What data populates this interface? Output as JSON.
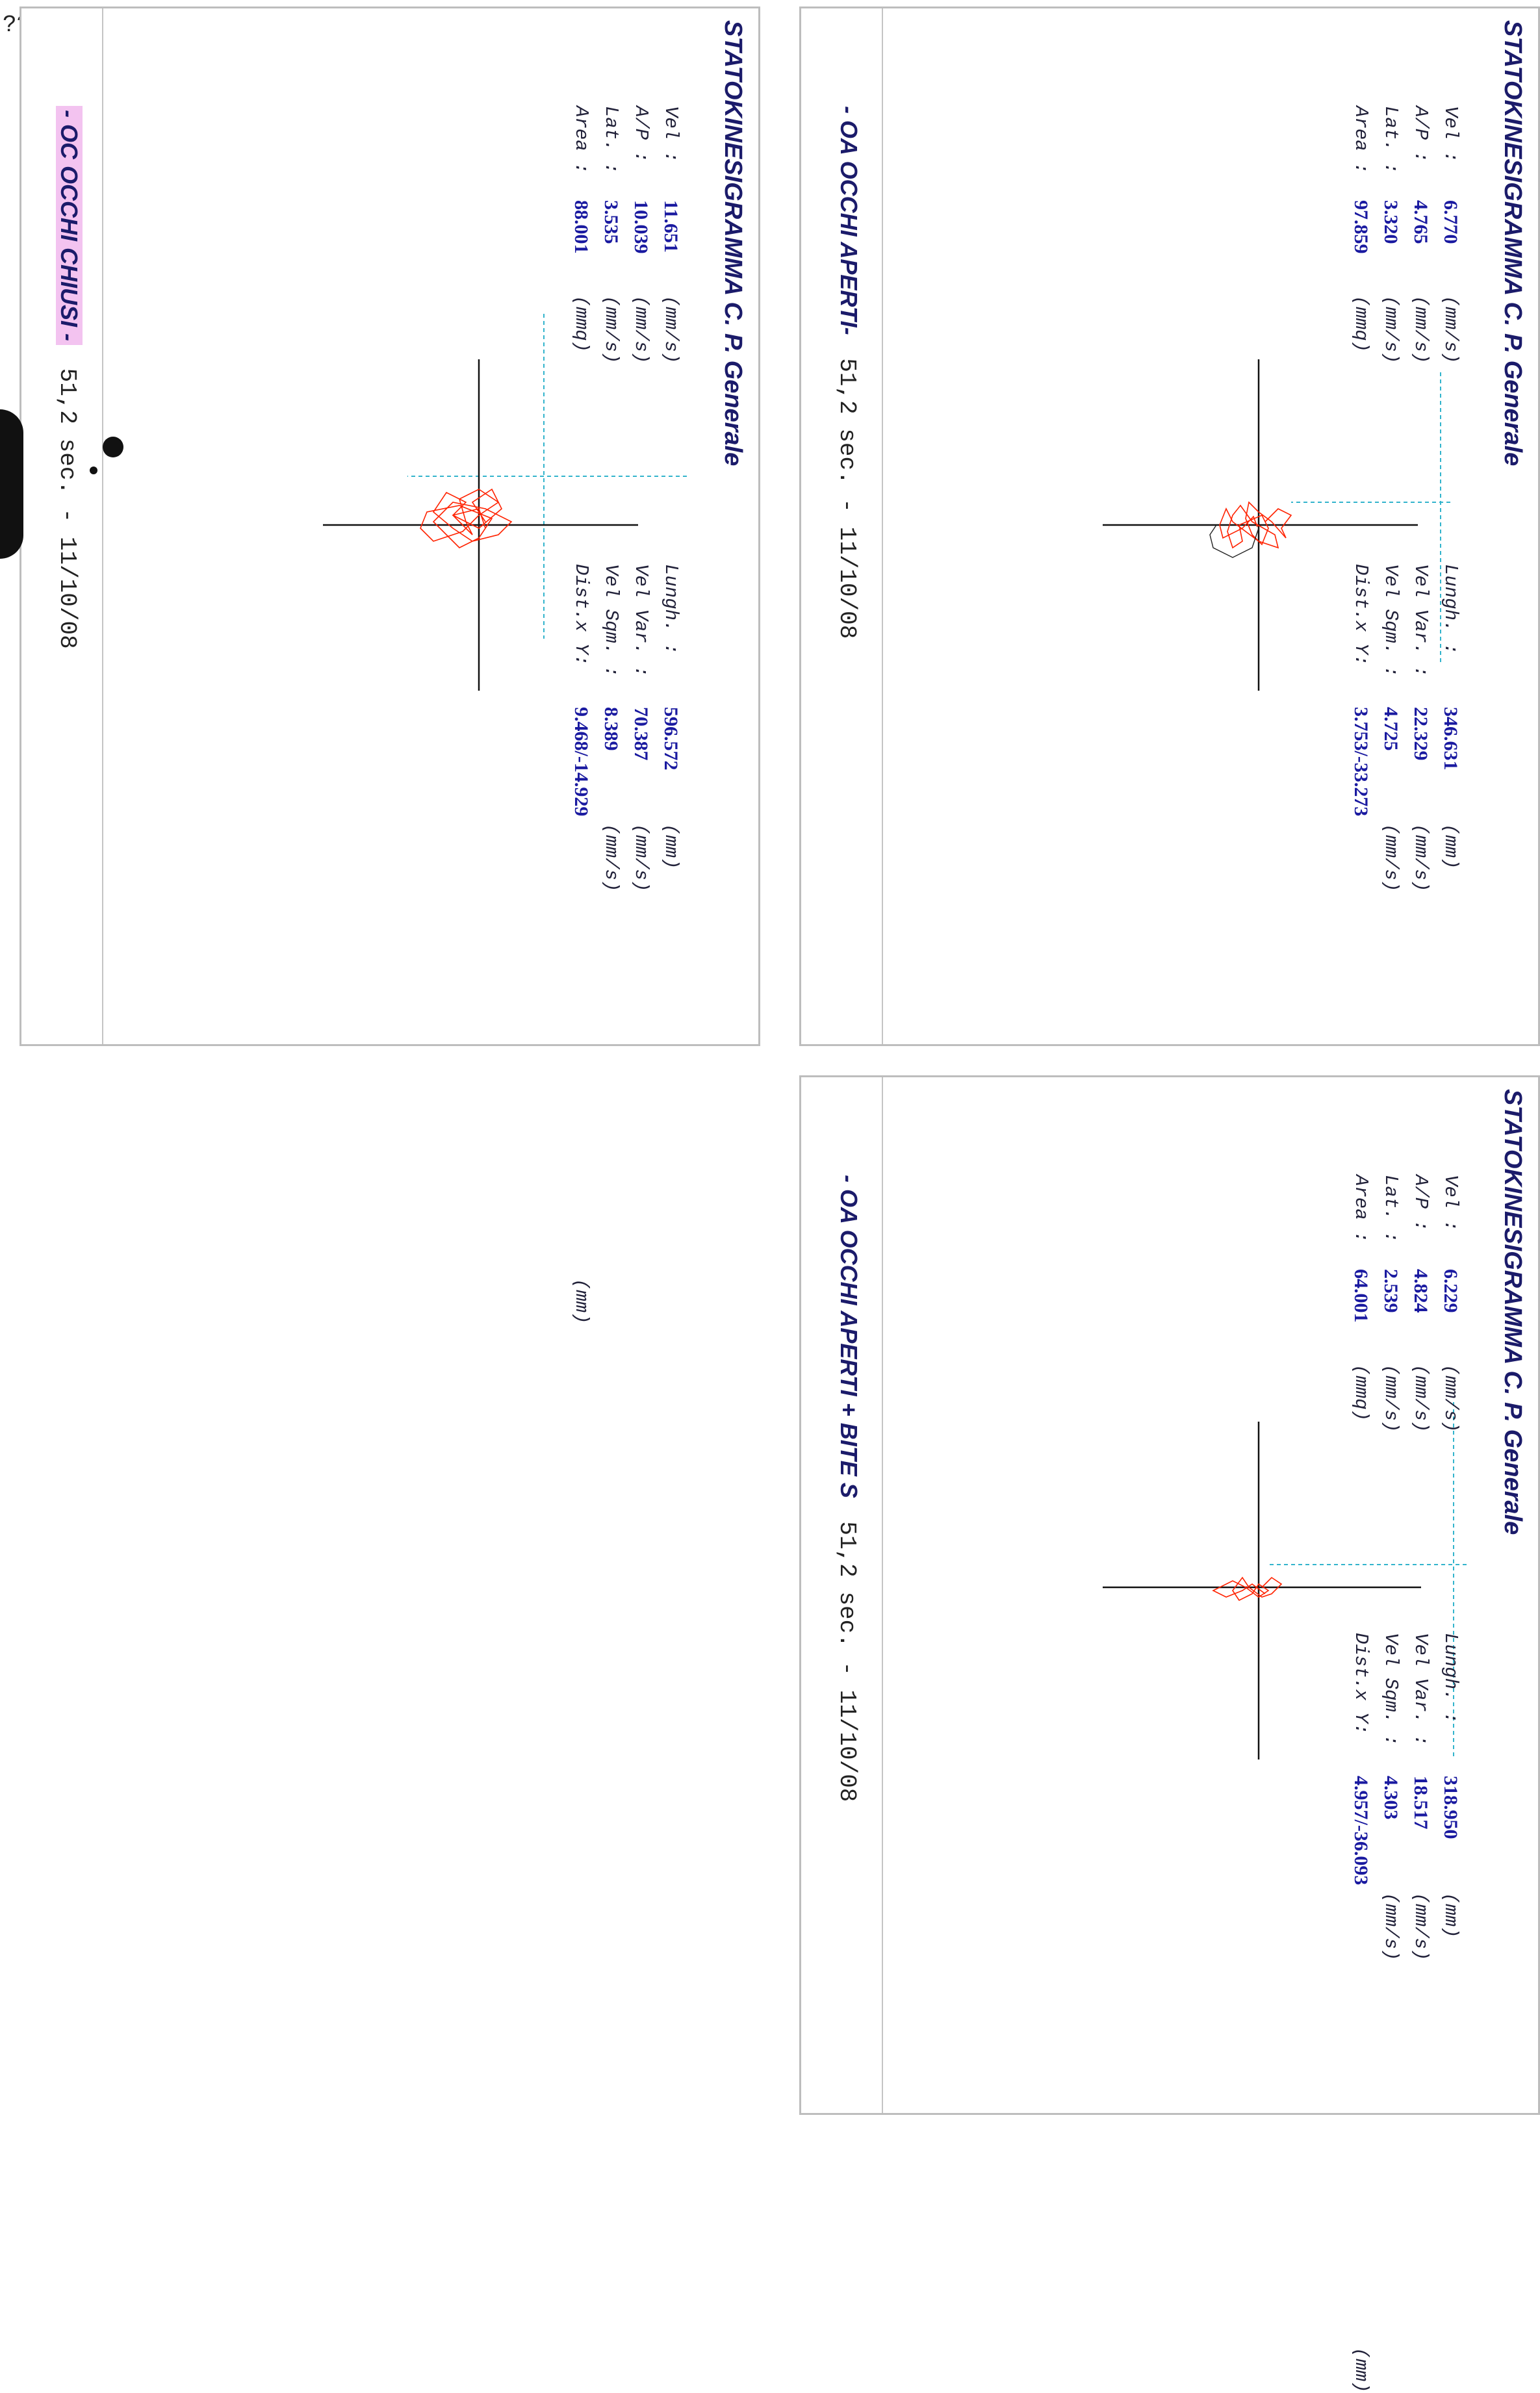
{
  "corner_mark": "??",
  "panels": [
    {
      "title": "STATOKINESIGRAMMA C. P. Generale",
      "condition": "- OA OCCHI APERTI-",
      "info": "51,2 sec.  - 11/10/08",
      "stats_left": [
        {
          "label": "Vel  :",
          "value": "6.770",
          "unit": "(mm/s)"
        },
        {
          "label": "A/P  :",
          "value": "4.765",
          "unit": "(mm/s)"
        },
        {
          "label": "Lat. :",
          "value": "3.320",
          "unit": "(mm/s)"
        },
        {
          "label": "Area :",
          "value": "97.859",
          "unit": "(mmq)"
        }
      ],
      "stats_right": [
        {
          "label": "Lungh.   :",
          "value": "346.631",
          "unit": "(mm)"
        },
        {
          "label": "Vel Var. :",
          "value": "22.329",
          "unit": "(mm/s)"
        },
        {
          "label": "Vel Sqm. :",
          "value": "4.725",
          "unit": "(mm/s)"
        },
        {
          "label": "Dist.x Y:",
          "value": "3.753/-33.273",
          "unit": "(mm)"
        }
      ]
    },
    {
      "title": "STATOKINESIGRAMMA C. P. Generale",
      "condition": "- OC OCCHI CHIUSI -",
      "info": "51,2 sec.  - 11/10/08",
      "stats_left": [
        {
          "label": "Vel  :",
          "value": "11.651",
          "unit": "(mm/s)"
        },
        {
          "label": "A/P  :",
          "value": "10.039",
          "unit": "(mm/s)"
        },
        {
          "label": "Lat. :",
          "value": "3.535",
          "unit": "(mm/s)"
        },
        {
          "label": "Area :",
          "value": "88.001",
          "unit": "(mmq)"
        }
      ],
      "stats_right": [
        {
          "label": "Lungh.   :",
          "value": "596.572",
          "unit": "(mm)"
        },
        {
          "label": "Vel Var. :",
          "value": "70.387",
          "unit": "(mm/s)"
        },
        {
          "label": "Vel Sqm. :",
          "value": "8.389",
          "unit": "(mm/s)"
        },
        {
          "label": "Dist.x Y:",
          "value": "9.468/-14.929",
          "unit": "(mm)"
        }
      ]
    },
    {
      "title": "STATOKINESIGRAMMA C. P. Generale",
      "condition": "- OA OCCHI APERTI + BITE S",
      "info": "51,2 sec.  - 11/10/08",
      "stats_left": [
        {
          "label": "Vel  :",
          "value": "6.229",
          "unit": "(mm/s)"
        },
        {
          "label": "A/P  :",
          "value": "4.824",
          "unit": "(mm/s)"
        },
        {
          "label": "Lat. :",
          "value": "2.539",
          "unit": "(mm/s)"
        },
        {
          "label": "Area :",
          "value": "64.001",
          "unit": "(mmq)"
        }
      ],
      "stats_right": [
        {
          "label": "Lungh.   :",
          "value": "318.950",
          "unit": "(mm)"
        },
        {
          "label": "Vel Var. :",
          "value": "18.517",
          "unit": "(mm/s)"
        },
        {
          "label": "Vel Sqm. :",
          "value": "4.303",
          "unit": "(mm/s)"
        },
        {
          "label": "Dist.x Y:",
          "value": "4.957/-36.093",
          "unit": "(mm)"
        }
      ]
    }
  ],
  "colors": {
    "trace": "#ff2200",
    "axis": "#111111",
    "guide": "#33b4cc",
    "value": "#1a1aa0",
    "highlight": "#f3c3f0"
  }
}
